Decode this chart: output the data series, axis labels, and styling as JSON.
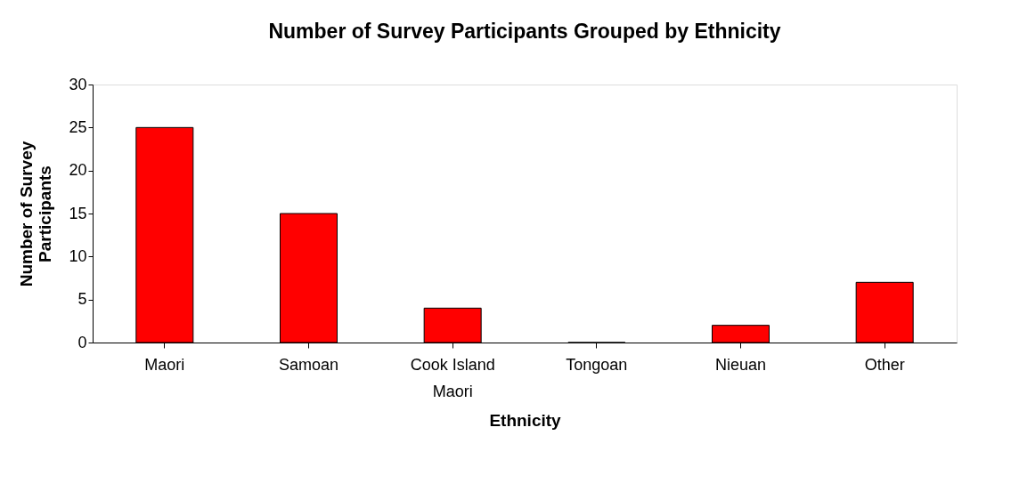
{
  "chart_data": {
    "type": "bar",
    "title": "Number of Survey Participants Grouped by Ethnicity",
    "xlabel": "Ethnicity",
    "ylabel": "Number of Survey Participants",
    "categories": [
      "Maori",
      "Samoan",
      "Cook Island Maori",
      "Tongoan",
      "Nieuan",
      "Other"
    ],
    "values": [
      25,
      15,
      4,
      0,
      2,
      7
    ],
    "color": "#ff0000",
    "ylim": [
      0,
      30
    ],
    "yticks": [
      0,
      5,
      10,
      15,
      20,
      25,
      30
    ],
    "grid": false
  }
}
